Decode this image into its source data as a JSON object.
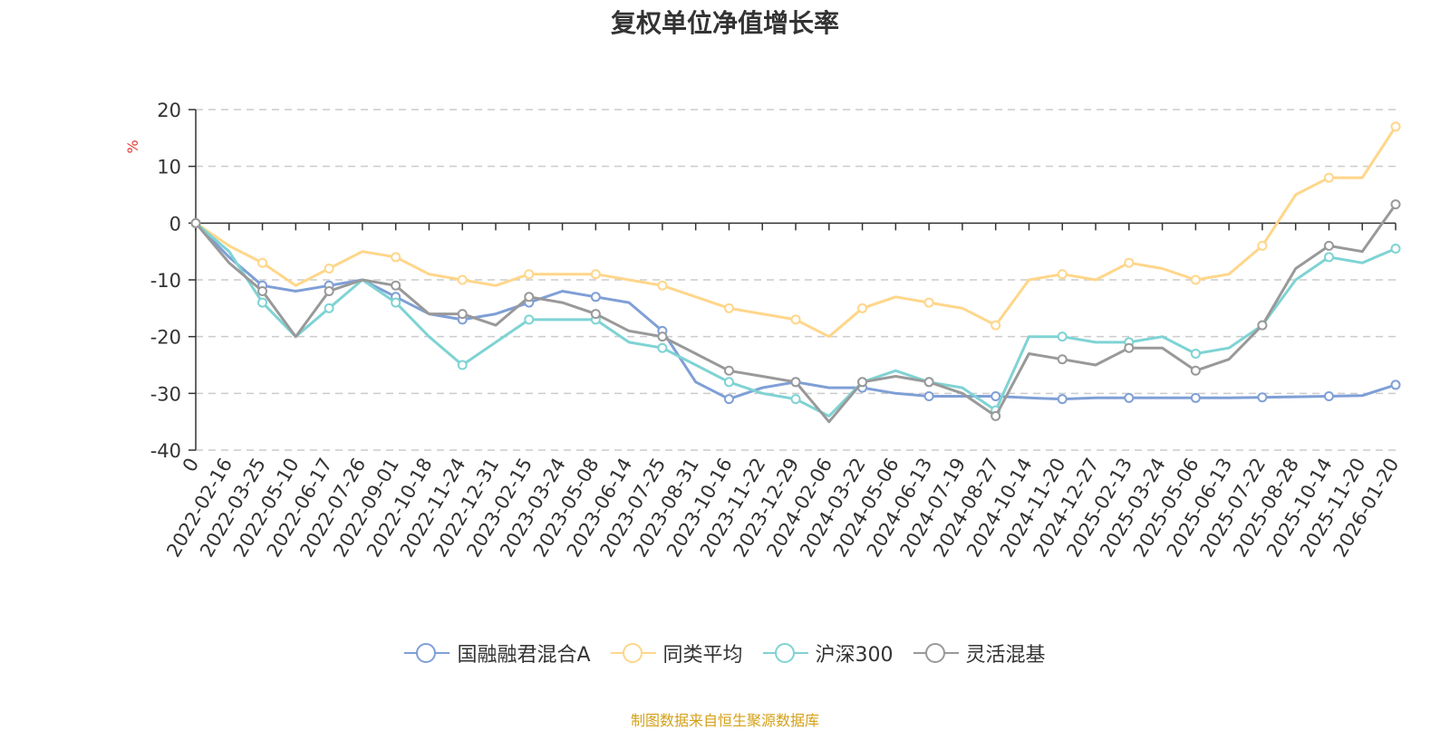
{
  "chart_data": {
    "type": "line",
    "title": "复权单位净值增长率",
    "ylabel": "%",
    "xlabel": "",
    "ylim": [
      -40,
      20
    ],
    "yticks": [
      20,
      10,
      0,
      -10,
      -20,
      -30,
      -40
    ],
    "categories": [
      "0",
      "2022-02-16",
      "2022-03-25",
      "2022-05-10",
      "2022-06-17",
      "2022-07-26",
      "2022-09-01",
      "2022-10-18",
      "2022-11-24",
      "2022-12-31",
      "2023-02-15",
      "2023-03-24",
      "2023-05-08",
      "2023-06-14",
      "2023-07-25",
      "2023-08-31",
      "2023-10-16",
      "2023-11-22",
      "2023-12-29",
      "2024-02-06",
      "2024-03-22",
      "2024-05-06",
      "2024-06-13",
      "2024-07-19",
      "2024-08-27",
      "2024-10-14",
      "2024-11-20",
      "2024-12-27",
      "2025-02-13",
      "2025-03-24",
      "2025-05-06",
      "2025-06-13",
      "2025-07-22",
      "2025-08-28",
      "2025-10-14",
      "2025-11-20",
      "2026-01-20"
    ],
    "grid": true,
    "legend_position": "bottom",
    "series": [
      {
        "name": "国融融君混合A",
        "color": "#7f9fd6",
        "values": [
          0,
          -6,
          -11,
          -12,
          -11,
          -10,
          -13,
          -16,
          -17,
          -16,
          -14,
          -12,
          -13,
          -14,
          -19,
          -28,
          -31,
          -29,
          -28,
          -29,
          -29,
          -30,
          -30.5,
          -30.5,
          -30.5,
          -30.8,
          -31,
          -30.8,
          -30.8,
          -30.8,
          -30.8,
          -30.8,
          -30.7,
          -30.6,
          -30.5,
          -30.4,
          -28.5
        ]
      },
      {
        "name": "同类平均",
        "color": "#ffd68a",
        "values": [
          0,
          -4,
          -7,
          -11,
          -8,
          -5,
          -6,
          -9,
          -10,
          -11,
          -9,
          -9,
          -9,
          -10,
          -11,
          -13,
          -15,
          -16,
          -17,
          -20,
          -15,
          -13,
          -14,
          -15,
          -18,
          -10,
          -9,
          -10,
          -7,
          -8,
          -10,
          -9,
          -4,
          5,
          8,
          8,
          17
        ]
      },
      {
        "name": "沪深300",
        "color": "#7fd3d4",
        "values": [
          0,
          -5,
          -14,
          -20,
          -15,
          -10,
          -14,
          -20,
          -25,
          -21,
          -17,
          -17,
          -17,
          -21,
          -22,
          -25,
          -28,
          -30,
          -31,
          -34,
          -28,
          -26,
          -28,
          -29,
          -33,
          -20,
          -20,
          -21,
          -21,
          -20,
          -23,
          -22,
          -18,
          -10,
          -6,
          -7,
          -4.5
        ]
      },
      {
        "name": "灵活混基",
        "color": "#999999",
        "values": [
          0,
          -7,
          -12,
          -20,
          -12,
          -10,
          -11,
          -16,
          -16,
          -18,
          -13,
          -14,
          -16,
          -19,
          -20,
          -23,
          -26,
          -27,
          -28,
          -35,
          -28,
          -27,
          -28,
          -30,
          -34,
          -23,
          -24,
          -25,
          -22,
          -22,
          -26,
          -24,
          -18,
          -8,
          -4,
          -5,
          3.3
        ]
      }
    ]
  },
  "source_note": "制图数据来自恒生聚源数据库"
}
